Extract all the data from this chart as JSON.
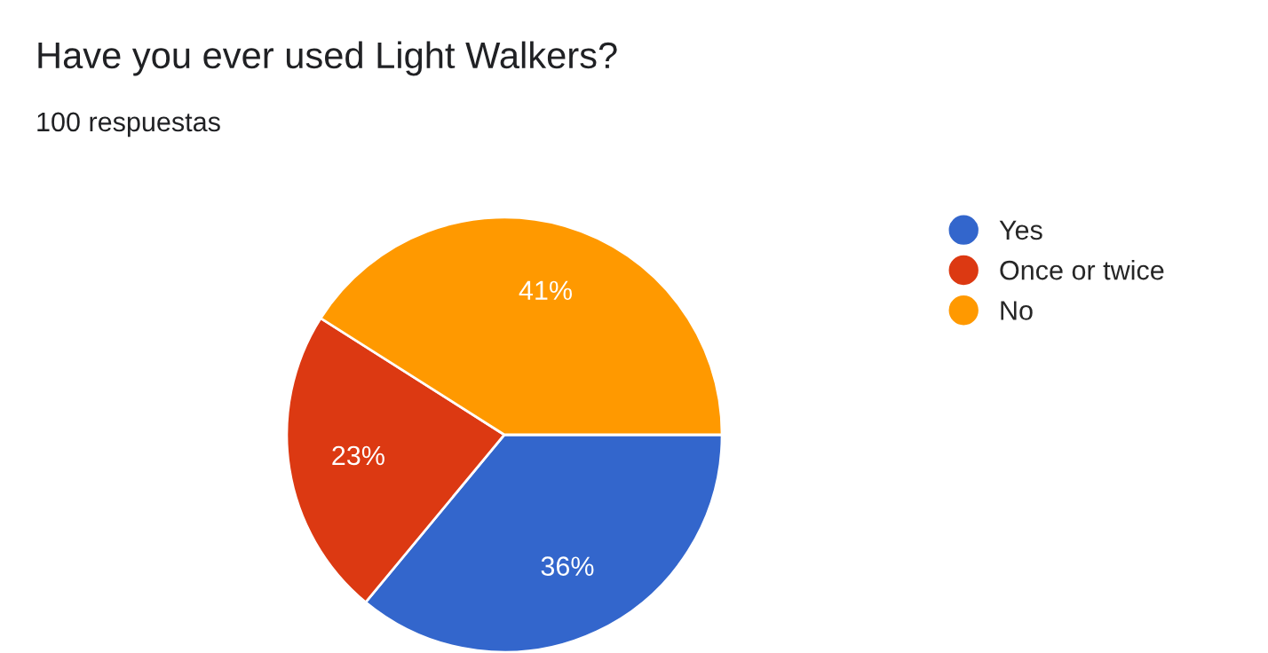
{
  "chart_data": {
    "type": "pie",
    "title": "Have you ever used Light Walkers?",
    "subtitle": "100 respuestas",
    "categories": [
      "Yes",
      "Once or twice",
      "No"
    ],
    "values": [
      36,
      23,
      41
    ],
    "colors": [
      "#3366cc",
      "#dc3912",
      "#ff9900"
    ],
    "value_labels": [
      "36%",
      "23%",
      "41%"
    ],
    "legend": "right"
  }
}
